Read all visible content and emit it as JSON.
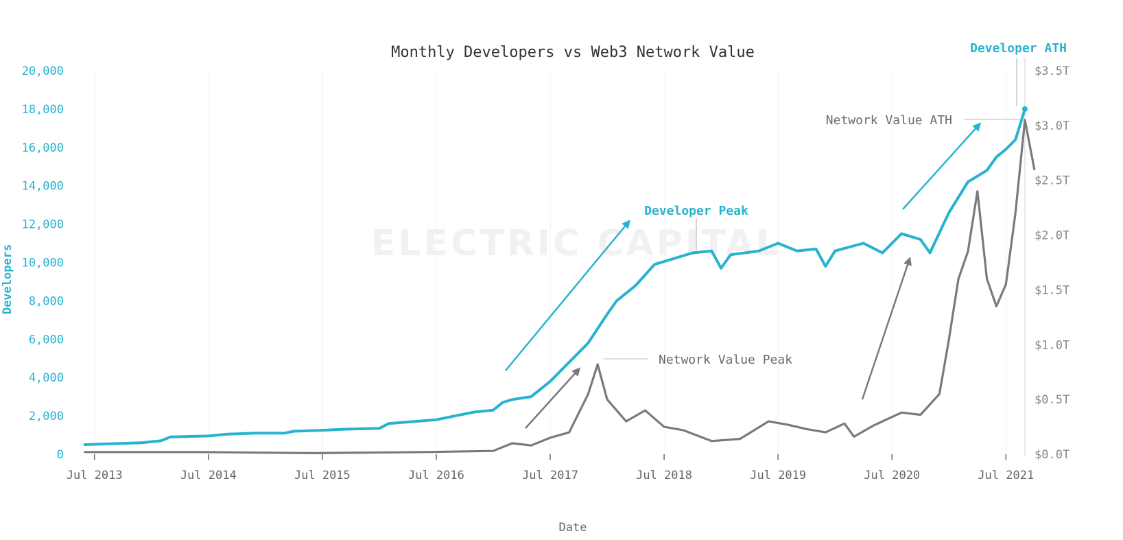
{
  "chart_data": {
    "type": "line",
    "title": "Monthly Developers vs Web3 Network Value",
    "xlabel": "Date",
    "ylabel": "Developers",
    "x_ticks": [
      "Jul 2013",
      "Jul 2014",
      "Jul 2015",
      "Jul 2016",
      "Jul 2017",
      "Jul 2018",
      "Jul 2019",
      "Jul 2020",
      "Jul 2021"
    ],
    "x_range": [
      "2013-05",
      "2021-09"
    ],
    "ylim_left": [
      0,
      20000
    ],
    "y_ticks_left": [
      "0",
      "2,000",
      "4,000",
      "6,000",
      "8,000",
      "10,000",
      "12,000",
      "14,000",
      "16,000",
      "18,000",
      "20,000"
    ],
    "ylim_right": [
      0,
      3.5
    ],
    "y_ticks_right": [
      "$0.0T",
      "$0.5T",
      "$1.0T",
      "$1.5T",
      "$2.0T",
      "$2.5T",
      "$3.0T",
      "$3.5T"
    ],
    "watermark": "ELECTRIC CAPITAL",
    "colors": {
      "developers": "#27b3cf",
      "network_value": "#7a7a7a"
    },
    "series": [
      {
        "axis": "left",
        "color": "#27b3cf",
        "points": [
          [
            "2013-06",
            500
          ],
          [
            "2013-09",
            550
          ],
          [
            "2013-12",
            600
          ],
          [
            "2014-02",
            700
          ],
          [
            "2014-03",
            900
          ],
          [
            "2014-07",
            950
          ],
          [
            "2014-09",
            1050
          ],
          [
            "2014-12",
            1100
          ],
          [
            "2015-03",
            1100
          ],
          [
            "2015-04",
            1200
          ],
          [
            "2015-07",
            1250
          ],
          [
            "2015-09",
            1300
          ],
          [
            "2016-01",
            1350
          ],
          [
            "2016-02",
            1600
          ],
          [
            "2016-07",
            1800
          ],
          [
            "2016-09",
            2000
          ],
          [
            "2016-11",
            2200
          ],
          [
            "2017-01",
            2300
          ],
          [
            "2017-02",
            2700
          ],
          [
            "2017-03",
            2850
          ],
          [
            "2017-05",
            3000
          ],
          [
            "2017-07",
            3800
          ],
          [
            "2017-09",
            4800
          ],
          [
            "2017-11",
            5800
          ],
          [
            "2018-01",
            7300
          ],
          [
            "2018-02",
            8000
          ],
          [
            "2018-04",
            8800
          ],
          [
            "2018-06",
            9900
          ],
          [
            "2018-08",
            10200
          ],
          [
            "2018-10",
            10500
          ],
          [
            "2018-12",
            10600
          ],
          [
            "2019-01",
            9700
          ],
          [
            "2019-02",
            10400
          ],
          [
            "2019-05",
            10600
          ],
          [
            "2019-07",
            11000
          ],
          [
            "2019-09",
            10600
          ],
          [
            "2019-11",
            10700
          ],
          [
            "2019-12",
            9800
          ],
          [
            "2020-01",
            10600
          ],
          [
            "2020-04",
            11000
          ],
          [
            "2020-06",
            10500
          ],
          [
            "2020-08",
            11500
          ],
          [
            "2020-10",
            11200
          ],
          [
            "2020-11",
            10500
          ],
          [
            "2021-01",
            12600
          ],
          [
            "2021-03",
            14200
          ],
          [
            "2021-05",
            14800
          ],
          [
            "2021-06",
            15500
          ],
          [
            "2021-07",
            15900
          ],
          [
            "2021-08",
            16400
          ],
          [
            "2021-09",
            18000
          ]
        ]
      },
      {
        "axis": "right",
        "color": "#7a7a7a",
        "points": [
          [
            "2013-06",
            0.02
          ],
          [
            "2014-06",
            0.02
          ],
          [
            "2015-06",
            0.01
          ],
          [
            "2016-06",
            0.02
          ],
          [
            "2017-01",
            0.03
          ],
          [
            "2017-03",
            0.1
          ],
          [
            "2017-05",
            0.08
          ],
          [
            "2017-07",
            0.15
          ],
          [
            "2017-09",
            0.2
          ],
          [
            "2017-11",
            0.55
          ],
          [
            "2017-12",
            0.82
          ],
          [
            "2018-01",
            0.5
          ],
          [
            "2018-03",
            0.3
          ],
          [
            "2018-05",
            0.4
          ],
          [
            "2018-07",
            0.25
          ],
          [
            "2018-09",
            0.22
          ],
          [
            "2018-12",
            0.12
          ],
          [
            "2019-03",
            0.14
          ],
          [
            "2019-06",
            0.3
          ],
          [
            "2019-08",
            0.27
          ],
          [
            "2019-10",
            0.23
          ],
          [
            "2019-12",
            0.2
          ],
          [
            "2020-02",
            0.28
          ],
          [
            "2020-03",
            0.16
          ],
          [
            "2020-05",
            0.26
          ],
          [
            "2020-08",
            0.38
          ],
          [
            "2020-10",
            0.36
          ],
          [
            "2020-12",
            0.55
          ],
          [
            "2021-01",
            1.05
          ],
          [
            "2021-02",
            1.6
          ],
          [
            "2021-03",
            1.85
          ],
          [
            "2021-04",
            2.4
          ],
          [
            "2021-05",
            1.6
          ],
          [
            "2021-06",
            1.35
          ],
          [
            "2021-07",
            1.55
          ],
          [
            "2021-08",
            2.2
          ],
          [
            "2021-09",
            3.05
          ],
          [
            "2021-10",
            2.6
          ]
        ]
      }
    ],
    "annotations": [
      {
        "text": "Developer Peak",
        "series": "developers",
        "x": "2018-10",
        "y": 10500
      },
      {
        "text": "Network Value Peak",
        "series": "network_value",
        "x": "2017-12",
        "y": 0.82
      },
      {
        "text": "Network Value ATH",
        "series": "network_value",
        "x": "2021-09",
        "y": 3.05
      },
      {
        "text": "Developer ATH",
        "series": "developers",
        "x": "2021-09",
        "y": 18000
      }
    ]
  }
}
